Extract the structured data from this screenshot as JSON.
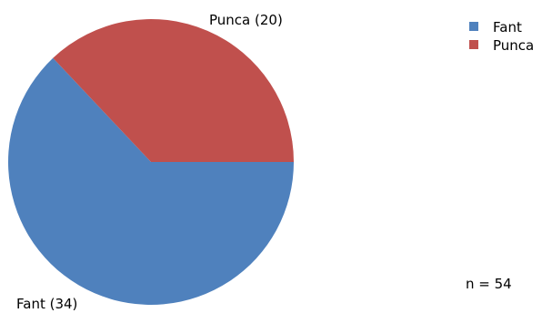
{
  "chart_data": {
    "type": "pie",
    "series": [
      {
        "name": "Fant",
        "value": 34,
        "label": "Fant (34)",
        "color": "#4f81bd"
      },
      {
        "name": "Punca",
        "value": 20,
        "label": "Punca (20)",
        "color": "#c0504d"
      }
    ],
    "legend": {
      "position": "top-right",
      "items": [
        "Fant",
        "Punca"
      ]
    },
    "total_label": "n = 54"
  }
}
